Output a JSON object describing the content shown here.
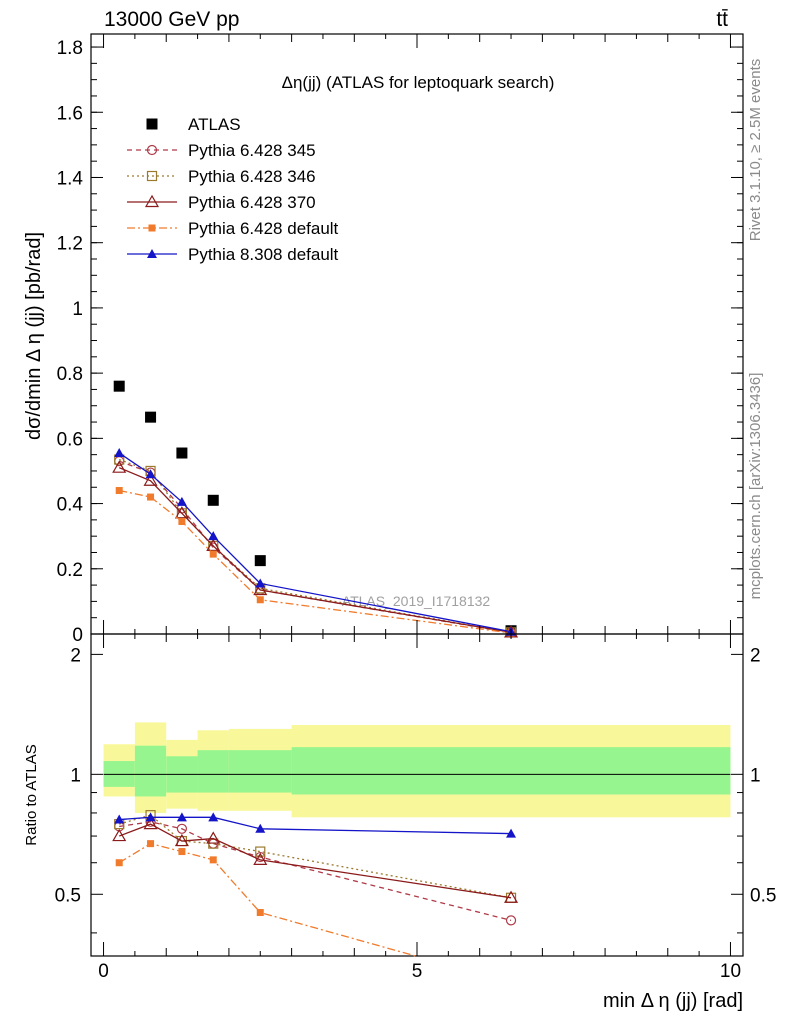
{
  "header": {
    "process": "13000 GeV pp",
    "final_state": "tt̄",
    "watermark": "ATLAS_2019_I1718132"
  },
  "side_labels": {
    "rivet": "Rivet 3.1.10, ≥ 2.5M events",
    "mcplots": "mcplots.cern.ch [arXiv:1306.3436]"
  },
  "chart_data": [
    {
      "type": "scatter",
      "title": "Δη(jj) (ATLAS for leptoquark search)",
      "xlabel": "min Δ η (jj) [rad]",
      "ylabel": "dσ/dmin Δ η (jj) [pb/rad]",
      "xlim": [
        -0.2,
        10.2
      ],
      "ylim": [
        0,
        1.84
      ],
      "yticks": [
        "0",
        "0.2",
        "0.4",
        "0.6",
        "0.8",
        "1",
        "1.2",
        "1.4",
        "1.6",
        "1.8"
      ],
      "legend_position": "top-left",
      "grid": false,
      "series": [
        {
          "name": "ATLAS",
          "style": "data",
          "color": "#000000",
          "marker": "square-filled",
          "x": [
            0.25,
            0.75,
            1.25,
            1.75,
            2.5,
            6.5
          ],
          "y": [
            0.76,
            0.665,
            0.555,
            0.41,
            0.225,
            0.01
          ]
        },
        {
          "name": "Pythia 6.428 345",
          "color": "#b03a48",
          "marker": "circle-open",
          "dash": "5,4",
          "x": [
            0.25,
            0.75,
            1.25,
            1.75,
            2.5,
            6.5
          ],
          "y": [
            0.53,
            0.495,
            0.385,
            0.265,
            0.135,
            0.004
          ]
        },
        {
          "name": "Pythia 6.428 346",
          "color": "#9b7a2e",
          "marker": "square-open",
          "dash": "2,3",
          "x": [
            0.25,
            0.75,
            1.25,
            1.75,
            2.5,
            6.5
          ],
          "y": [
            0.535,
            0.5,
            0.37,
            0.27,
            0.14,
            0.005
          ]
        },
        {
          "name": "Pythia 6.428 370",
          "color": "#8b1a1a",
          "marker": "triangle-open",
          "dash": "",
          "x": [
            0.25,
            0.75,
            1.25,
            1.75,
            2.5,
            6.5
          ],
          "y": [
            0.51,
            0.47,
            0.37,
            0.27,
            0.135,
            0.005
          ]
        },
        {
          "name": "Pythia 6.428 default",
          "color": "#f07b2c",
          "marker": "square-filled-small",
          "dash": "8,3,2,3",
          "x": [
            0.25,
            0.75,
            1.25,
            1.75,
            2.5,
            6.5
          ],
          "y": [
            0.44,
            0.42,
            0.345,
            0.245,
            0.105,
            0.003
          ]
        },
        {
          "name": "Pythia 8.308 default",
          "color": "#1414c8",
          "marker": "triangle-filled",
          "dash": "",
          "x": [
            0.25,
            0.75,
            1.25,
            1.75,
            2.5,
            6.5
          ],
          "y": [
            0.555,
            0.49,
            0.405,
            0.3,
            0.155,
            0.007
          ]
        }
      ]
    },
    {
      "type": "scatter",
      "title": "",
      "xlabel": "min Δ η (jj) [rad]",
      "ylabel": "Ratio to ATLAS",
      "xlim": [
        -0.2,
        10.2
      ],
      "ylim": [
        0.35,
        2.25
      ],
      "yticks": [
        "0.5",
        "1",
        "2"
      ],
      "xticks": [
        "0",
        "5",
        "10"
      ],
      "bands": {
        "edges": [
          0,
          0.5,
          1.0,
          1.5,
          2.0,
          3.0,
          10.0
        ],
        "yellow_low": [
          0.88,
          0.8,
          0.82,
          0.81,
          0.81,
          0.78
        ],
        "yellow_high": [
          1.19,
          1.35,
          1.22,
          1.29,
          1.3,
          1.33
        ],
        "green_low": [
          0.93,
          0.88,
          0.9,
          0.9,
          0.9,
          0.89
        ],
        "green_high": [
          1.08,
          1.18,
          1.11,
          1.15,
          1.15,
          1.17
        ],
        "yellow_color": "#f8f89a",
        "green_color": "#97f58f"
      },
      "series": [
        {
          "name": "Pythia 6.428 345",
          "color": "#b03a48",
          "marker": "circle-open",
          "dash": "5,4",
          "x": [
            0.25,
            0.75,
            1.25,
            1.75,
            2.5,
            6.5
          ],
          "y": [
            0.74,
            0.76,
            0.73,
            0.67,
            0.62,
            0.43
          ]
        },
        {
          "name": "Pythia 6.428 346",
          "color": "#9b7a2e",
          "marker": "square-open",
          "dash": "2,3",
          "x": [
            0.25,
            0.75,
            1.25,
            1.75,
            2.5,
            6.5
          ],
          "y": [
            0.75,
            0.79,
            0.68,
            0.67,
            0.64,
            0.49
          ]
        },
        {
          "name": "Pythia 6.428 370",
          "color": "#8b1a1a",
          "marker": "triangle-open",
          "dash": "",
          "x": [
            0.25,
            0.75,
            1.25,
            1.75,
            2.5,
            6.5
          ],
          "y": [
            0.7,
            0.75,
            0.68,
            0.69,
            0.61,
            0.49
          ]
        },
        {
          "name": "Pythia 6.428 default",
          "color": "#f07b2c",
          "marker": "square-filled-small",
          "dash": "8,3,2,3",
          "x": [
            0.25,
            0.75,
            1.25,
            1.75,
            2.5,
            6.5
          ],
          "y": [
            0.6,
            0.67,
            0.64,
            0.61,
            0.45,
            0.3
          ]
        },
        {
          "name": "Pythia 8.308 default",
          "color": "#1414c8",
          "marker": "triangle-filled",
          "dash": "",
          "x": [
            0.25,
            0.75,
            1.25,
            1.75,
            2.5,
            6.5
          ],
          "y": [
            0.77,
            0.78,
            0.78,
            0.78,
            0.73,
            0.71
          ]
        }
      ]
    }
  ]
}
